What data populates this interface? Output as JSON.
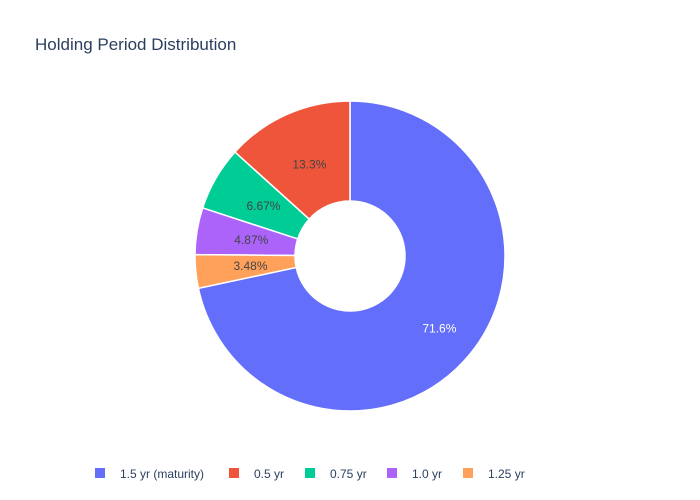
{
  "chart_data": {
    "type": "pie",
    "title": "Holding Period Distribution",
    "hole": true,
    "legend_position": "bottom",
    "slices": [
      {
        "label": "1.5 yr (maturity)",
        "value": 71.6,
        "text": "71.6%",
        "color": "#636efa",
        "text_color": "#ffffff"
      },
      {
        "label": "0.5 yr",
        "value": 13.3,
        "text": "13.3%",
        "color": "#ef553b",
        "text_color": "#444444"
      },
      {
        "label": "0.75 yr",
        "value": 6.67,
        "text": "6.67%",
        "color": "#00cc96",
        "text_color": "#444444"
      },
      {
        "label": "1.0 yr",
        "value": 4.87,
        "text": "4.87%",
        "color": "#ab63fa",
        "text_color": "#444444"
      },
      {
        "label": "1.25 yr",
        "value": 3.48,
        "text": "3.48%",
        "color": "#ffa15a",
        "text_color": "#444444"
      }
    ]
  }
}
